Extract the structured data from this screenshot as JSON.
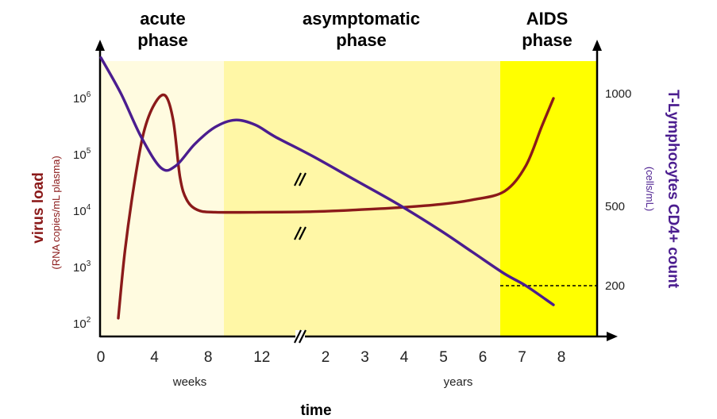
{
  "chart_data": {
    "type": "line",
    "phases": [
      {
        "title": "acute phase",
        "line1": "acute",
        "line2": "phase",
        "color": "#fffbe0"
      },
      {
        "title": "asymptomatic phase",
        "line1": "asymptomatic",
        "line2": "phase",
        "color": "#fff7a6"
      },
      {
        "title": "AIDS phase",
        "line1": "AIDS",
        "line2": "phase",
        "color": "#ffff00"
      }
    ],
    "xlabel": "time",
    "x_ticks_weeks": [
      "0",
      "4",
      "8",
      "12"
    ],
    "x_ticks_years": [
      "2",
      "3",
      "4",
      "5",
      "6",
      "7",
      "8"
    ],
    "x_unit_weeks": "weeks",
    "x_unit_years": "years",
    "y_left": {
      "label": "virus load",
      "sublabel": "(RNA copies/mL plasma)",
      "scale": "log",
      "ticks": [
        "2",
        "3",
        "4",
        "5",
        "6"
      ],
      "color": "#8b1a1a"
    },
    "y_right": {
      "label": "T-Lymphocytes CD4+ count",
      "sublabel": "(cells/mL)",
      "ticks": [
        "1000",
        "500",
        "200"
      ],
      "color": "#4b1d8f"
    },
    "series": [
      {
        "name": "virus load",
        "color": "#8b1a1a",
        "points": [
          [
            1.3,
            2.1
          ],
          [
            1.8,
            3.3
          ],
          [
            2.5,
            4.5
          ],
          [
            3.2,
            5.4
          ],
          [
            4,
            5.9
          ],
          [
            4.8,
            6.05
          ],
          [
            5.4,
            5.6
          ],
          [
            5.9,
            4.6
          ],
          [
            6.4,
            4.2
          ],
          [
            7.2,
            4.02
          ],
          [
            8.5,
            3.98
          ],
          [
            12,
            3.98
          ],
          [
            16,
            3.99
          ],
          [
            20,
            4.02
          ],
          [
            24,
            4.06
          ],
          [
            28,
            4.12
          ],
          [
            31,
            4.2
          ],
          [
            34,
            4.35
          ],
          [
            36,
            4.8
          ],
          [
            37.5,
            5.5
          ],
          [
            38.6,
            6.0
          ]
        ]
      },
      {
        "name": "T-Lymphocytes CD4+ count",
        "color": "#4b1d8f",
        "points": [
          [
            0,
            1150
          ],
          [
            1.5,
            1000
          ],
          [
            3,
            820
          ],
          [
            4.5,
            690
          ],
          [
            5.6,
            700
          ],
          [
            7,
            790
          ],
          [
            8.5,
            860
          ],
          [
            10,
            890
          ],
          [
            11.5,
            870
          ],
          [
            13,
            820
          ],
          [
            16,
            740
          ],
          [
            20,
            640
          ],
          [
            24,
            540
          ],
          [
            28,
            430
          ],
          [
            31,
            340
          ],
          [
            34,
            250
          ],
          [
            36,
            200
          ],
          [
            38.6,
            120
          ]
        ]
      }
    ],
    "cd4_threshold": 200
  }
}
